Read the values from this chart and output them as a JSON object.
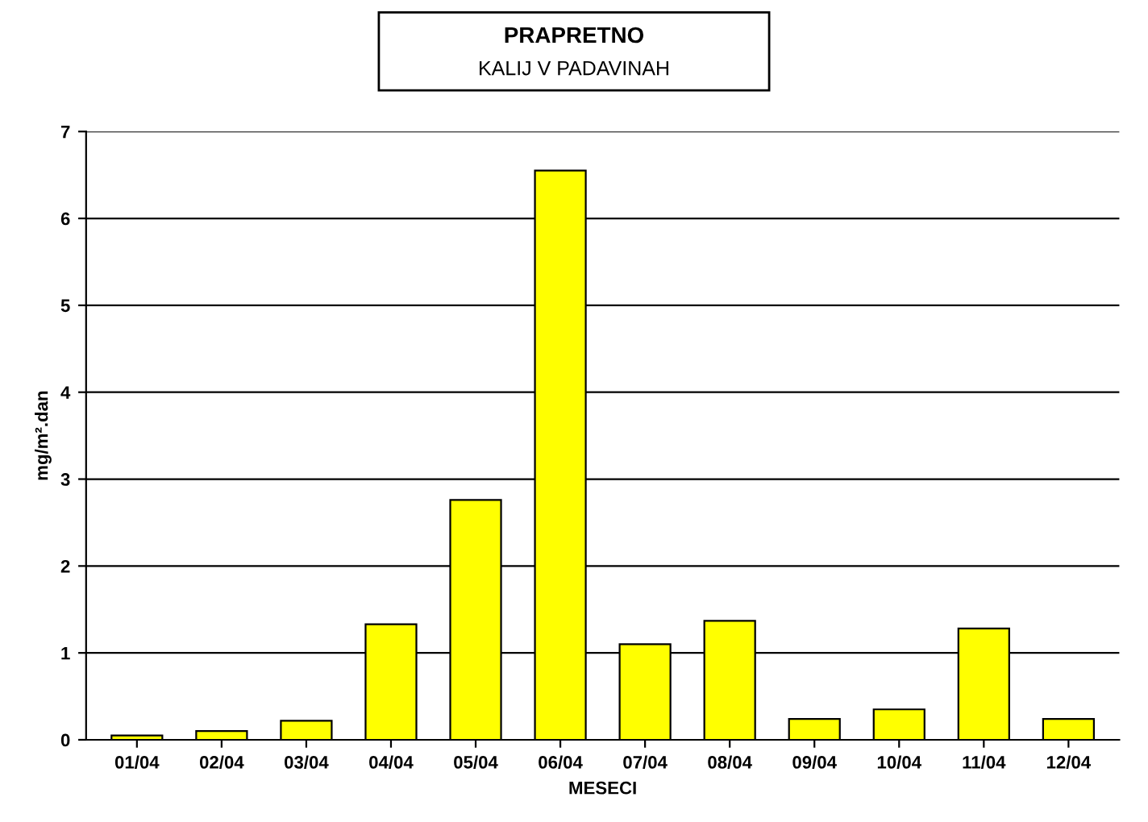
{
  "chart_data": {
    "type": "bar",
    "title": "PRAPRETNO",
    "subtitle": "KALIJ V PADAVINAH",
    "xlabel": "MESECI",
    "ylabel": "mg/m².dan",
    "categories": [
      "01/04",
      "02/04",
      "03/04",
      "04/04",
      "05/04",
      "06/04",
      "07/04",
      "08/04",
      "09/04",
      "10/04",
      "11/04",
      "12/04"
    ],
    "values": [
      0.05,
      0.1,
      0.22,
      1.33,
      2.76,
      6.55,
      1.1,
      1.37,
      0.24,
      0.35,
      1.28,
      0.24
    ],
    "color": "#ffff00",
    "ylim": [
      0,
      7
    ],
    "yticks": [
      0,
      1,
      2,
      3,
      4,
      5,
      6,
      7
    ],
    "grid": "y"
  }
}
